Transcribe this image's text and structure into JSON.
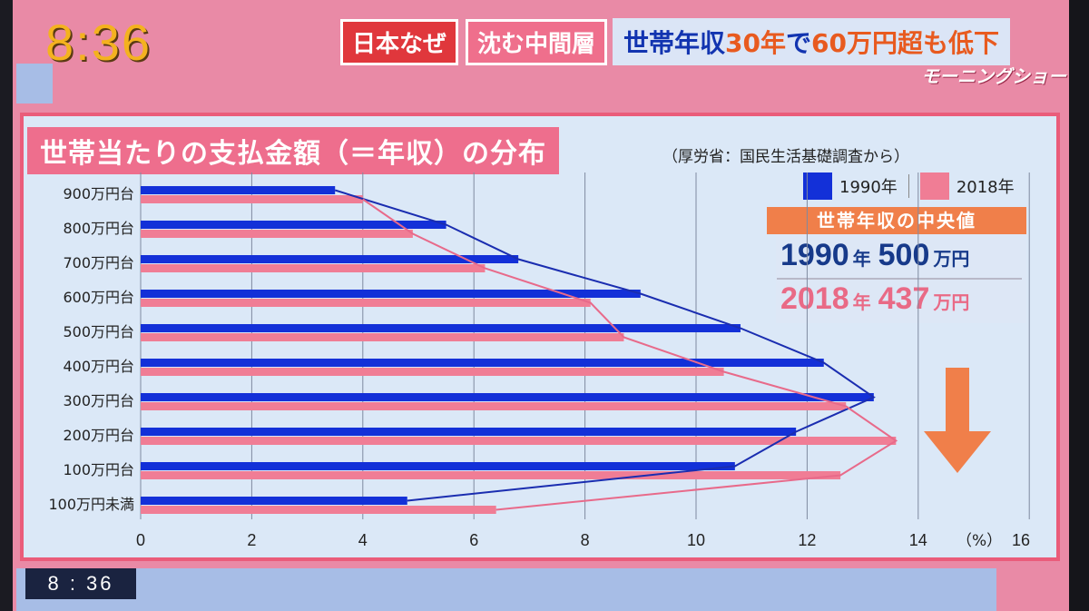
{
  "header": {
    "clock": "8:36",
    "tag1": "日本なぜ",
    "tag2": "沈む中間層",
    "headline_blue": "世帯年収",
    "headline_orange1": "30年",
    "headline_blue2": "で",
    "headline_orange2": "60万円超も低下",
    "show_logo": "モーニングショー"
  },
  "chart_title": "世帯当たりの支払金額（＝年収）の分布",
  "source": "（厚労省：国民生活基礎調査から）",
  "median": {
    "title": "世帯年収の中央値",
    "rows": [
      {
        "year": "1990",
        "year_unit": "年",
        "value": "500",
        "value_unit": "万円"
      },
      {
        "year": "2018",
        "year_unit": "年",
        "value": "437",
        "value_unit": "万円"
      }
    ]
  },
  "chart_data": {
    "type": "bar",
    "orientation": "horizontal",
    "categories": [
      "900万円台",
      "800万円台",
      "700万円台",
      "600万円台",
      "500万円台",
      "400万円台",
      "300万円台",
      "200万円台",
      "100万円台",
      "100万円未満"
    ],
    "series": [
      {
        "name": "1990年",
        "color": "#1330d8",
        "values": [
          3.5,
          5.5,
          6.8,
          9.0,
          10.8,
          12.3,
          13.2,
          11.8,
          10.7,
          4.8
        ]
      },
      {
        "name": "2018年",
        "color": "#f07d95",
        "values": [
          4.0,
          4.9,
          6.2,
          8.1,
          8.7,
          10.5,
          12.7,
          13.6,
          12.6,
          6.4
        ]
      }
    ],
    "xticks": [
      "0",
      "2",
      "4",
      "6",
      "8",
      "10",
      "12",
      "14"
    ],
    "xunit": "（%）",
    "xmax_label": "16",
    "xlim": [
      0,
      16
    ],
    "connector_lines": true
  },
  "footer": {
    "clock": "8 : 36"
  }
}
